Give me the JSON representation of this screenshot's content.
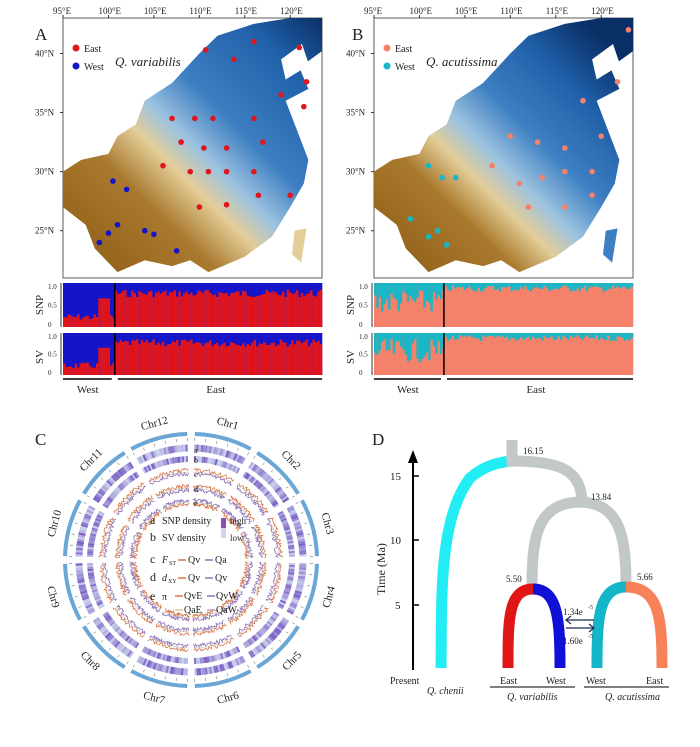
{
  "panels": {
    "A": {
      "letter": "A",
      "species": "Q. variabilis",
      "legend": [
        {
          "label": "East",
          "color": "#e0161e"
        },
        {
          "label": "West",
          "color": "#1414c8"
        }
      ],
      "lon_ticks": [
        "95°E",
        "100°E",
        "105°E",
        "110°E",
        "115°E",
        "120°E"
      ],
      "lat_ticks": [
        "40°N",
        "35°N",
        "30°N",
        "25°N"
      ],
      "rows": [
        "SNP",
        "SV"
      ],
      "y_ticks": [
        "0",
        "0.5",
        "1.0"
      ],
      "groups": [
        "West",
        "East"
      ],
      "colors": {
        "east": "#e0161e",
        "west": "#1414c8"
      },
      "points": {
        "east": [
          [
            110.7,
            40.3
          ],
          [
            116,
            41
          ],
          [
            121,
            40.5
          ],
          [
            113.8,
            39.5
          ],
          [
            121.8,
            37.6
          ],
          [
            119,
            36.5
          ],
          [
            107,
            34.5
          ],
          [
            109.5,
            34.5
          ],
          [
            111.5,
            34.5
          ],
          [
            116,
            34.5
          ],
          [
            121.5,
            35.5
          ],
          [
            108,
            32.5
          ],
          [
            110.5,
            32
          ],
          [
            113,
            32
          ],
          [
            117,
            32.5
          ],
          [
            106,
            30.5
          ],
          [
            109,
            30
          ],
          [
            111,
            30
          ],
          [
            113,
            30
          ],
          [
            116,
            30
          ],
          [
            110,
            27
          ],
          [
            113,
            27.2
          ],
          [
            116.5,
            28
          ],
          [
            120,
            28
          ]
        ],
        "west": [
          [
            100.5,
            29.2
          ],
          [
            102,
            28.5
          ],
          [
            101,
            25.5
          ],
          [
            104,
            25
          ],
          [
            100,
            24.8
          ],
          [
            105,
            24.7
          ],
          [
            99,
            24
          ],
          [
            107.5,
            23.3
          ]
        ]
      }
    },
    "B": {
      "letter": "B",
      "species": "Q. acutissima",
      "legend": [
        {
          "label": "East",
          "color": "#f4826a"
        },
        {
          "label": "West",
          "color": "#17b7c7"
        }
      ],
      "lon_ticks": [
        "95°E",
        "100°E",
        "105°E",
        "110°E",
        "115°E",
        "120°E"
      ],
      "lat_ticks": [
        "40°N",
        "35°N",
        "30°N",
        "25°N"
      ],
      "rows": [
        "SNP",
        "SV"
      ],
      "y_ticks": [
        "0",
        "0.5",
        "1.0"
      ],
      "groups": [
        "West",
        "East"
      ],
      "colors": {
        "east": "#f4826a",
        "west": "#17b7c7"
      },
      "points": {
        "east": [
          [
            121.8,
            37.6
          ],
          [
            118,
            36
          ],
          [
            110,
            33
          ],
          [
            113,
            32.5
          ],
          [
            116,
            32
          ],
          [
            120,
            33
          ],
          [
            108,
            30.5
          ],
          [
            111,
            29
          ],
          [
            113.5,
            29.5
          ],
          [
            116,
            30
          ],
          [
            119,
            30
          ],
          [
            112,
            27
          ],
          [
            116,
            27
          ],
          [
            119,
            28
          ],
          [
            123,
            42
          ]
        ],
        "west": [
          [
            101,
            30.5
          ],
          [
            102.5,
            29.5
          ],
          [
            104,
            29.5
          ],
          [
            99,
            26
          ],
          [
            101,
            24.5
          ],
          [
            102,
            25
          ],
          [
            103,
            23.8
          ]
        ]
      }
    },
    "C": {
      "letter": "C",
      "chromosomes": [
        "Chr1",
        "Chr2",
        "Chr3",
        "Chr4",
        "Chr5",
        "Chr6",
        "Chr7",
        "Chr8",
        "Chr9",
        "Chr10",
        "Chr11",
        "Chr12"
      ],
      "track_letters": [
        "a",
        "b",
        "c",
        "d",
        "e"
      ],
      "legend": {
        "a": "SNP density",
        "b": "SV density",
        "high": "high",
        "low": "low",
        "c_label": "F",
        "c_sub": "ST",
        "c_items": [
          "Qv",
          "Qa"
        ],
        "d_label": "d",
        "d_sub": "XY",
        "d_items": [
          "Qv",
          "Qv"
        ],
        "e_label": "π",
        "e_items": [
          "QvE",
          "QvW",
          "QaE",
          "QaW"
        ]
      },
      "colors": {
        "orange": "#d9774a",
        "purple": "#8e72b6",
        "light_orange": "#eebfa0",
        "light_purple": "#b9a3d3",
        "blue": "#6aa6d6"
      }
    },
    "D": {
      "letter": "D",
      "ylabel": "Time (Ma)",
      "ticks": [
        "5",
        "10",
        "15"
      ],
      "present": "Present",
      "nodes": [
        "16.15",
        "13.84",
        "5.50",
        "5.66"
      ],
      "migration": [
        "1.34e",
        "-5",
        "1.60e",
        "-5"
      ],
      "tips": {
        "chenii": "Q. chenii",
        "qv_e": "East",
        "qv_w": "West",
        "qa_w": "West",
        "qa_e": "East"
      },
      "species": [
        "Q. variabilis",
        "Q. acutissima"
      ],
      "colors": {
        "chenii": "#22ecf4",
        "ancestral": "#c2c7c8",
        "qv_e": "#e01515",
        "qv_w": "#1010d6",
        "qa_w": "#13b6c9",
        "qa_e": "#f7825a"
      }
    }
  }
}
